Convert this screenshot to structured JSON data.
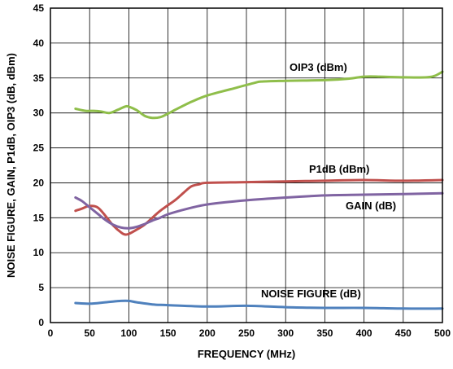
{
  "chart_data": {
    "type": "line",
    "xlabel": "FREQUENCY (MHz)",
    "ylabel": "NOISE FIGURE, GAIN, P1dB, OIP3 (dB, dBm)",
    "xlim": [
      0,
      500
    ],
    "ylim": [
      0,
      45
    ],
    "xticks": [
      0,
      50,
      100,
      150,
      200,
      250,
      300,
      350,
      400,
      450,
      500
    ],
    "yticks": [
      0,
      5,
      10,
      15,
      20,
      25,
      30,
      35,
      40,
      45
    ],
    "grid": true,
    "series": [
      {
        "name": "OIP3 (dBm)",
        "color": "#8fbe4a",
        "x": [
          32,
          45,
          55,
          65,
          75,
          85,
          95,
          100,
          110,
          120,
          130,
          140,
          150,
          160,
          180,
          200,
          230,
          260,
          270,
          300,
          350,
          380,
          400,
          420,
          450,
          480,
          490,
          500
        ],
        "y": [
          30.6,
          30.3,
          30.3,
          30.2,
          30.0,
          30.4,
          30.9,
          30.9,
          30.4,
          29.6,
          29.3,
          29.4,
          29.9,
          30.5,
          31.6,
          32.5,
          33.4,
          34.3,
          34.5,
          34.6,
          34.7,
          34.9,
          35.2,
          35.2,
          35.1,
          35.1,
          35.3,
          35.9
        ]
      },
      {
        "name": "P1dB (dBm)",
        "color": "#c0504d",
        "x": [
          32,
          40,
          50,
          60,
          70,
          80,
          90,
          95,
          100,
          110,
          120,
          130,
          140,
          150,
          160,
          170,
          180,
          190,
          200,
          250,
          300,
          350,
          400,
          450,
          500
        ],
        "y": [
          16.0,
          16.3,
          16.7,
          16.5,
          15.3,
          13.9,
          12.9,
          12.6,
          12.7,
          13.3,
          14.0,
          15.0,
          16.0,
          16.8,
          17.6,
          18.6,
          19.5,
          19.8,
          20.0,
          20.1,
          20.2,
          20.3,
          20.4,
          20.3,
          20.4
        ]
      },
      {
        "name": "GAIN (dB)",
        "color": "#8064a2",
        "x": [
          32,
          40,
          50,
          60,
          70,
          80,
          90,
          100,
          110,
          120,
          130,
          140,
          150,
          175,
          200,
          250,
          300,
          350,
          400,
          450,
          500
        ],
        "y": [
          17.9,
          17.4,
          16.5,
          15.6,
          14.7,
          14.0,
          13.6,
          13.5,
          13.7,
          14.1,
          14.6,
          15.0,
          15.5,
          16.3,
          16.9,
          17.5,
          17.9,
          18.2,
          18.3,
          18.4,
          18.5
        ]
      },
      {
        "name": "NOISE FIGURE (dB)",
        "color": "#4f81bd",
        "x": [
          32,
          50,
          70,
          90,
          100,
          110,
          130,
          150,
          200,
          250,
          300,
          350,
          400,
          450,
          500
        ],
        "y": [
          2.8,
          2.7,
          2.9,
          3.1,
          3.1,
          2.9,
          2.6,
          2.5,
          2.3,
          2.4,
          2.2,
          2.1,
          2.1,
          2.0,
          2.0
        ]
      }
    ],
    "annotations": [
      "OIP3 (dBm)",
      "P1dB (dBm)",
      "GAIN (dB)",
      "NOISE FIGURE (dB)"
    ]
  }
}
